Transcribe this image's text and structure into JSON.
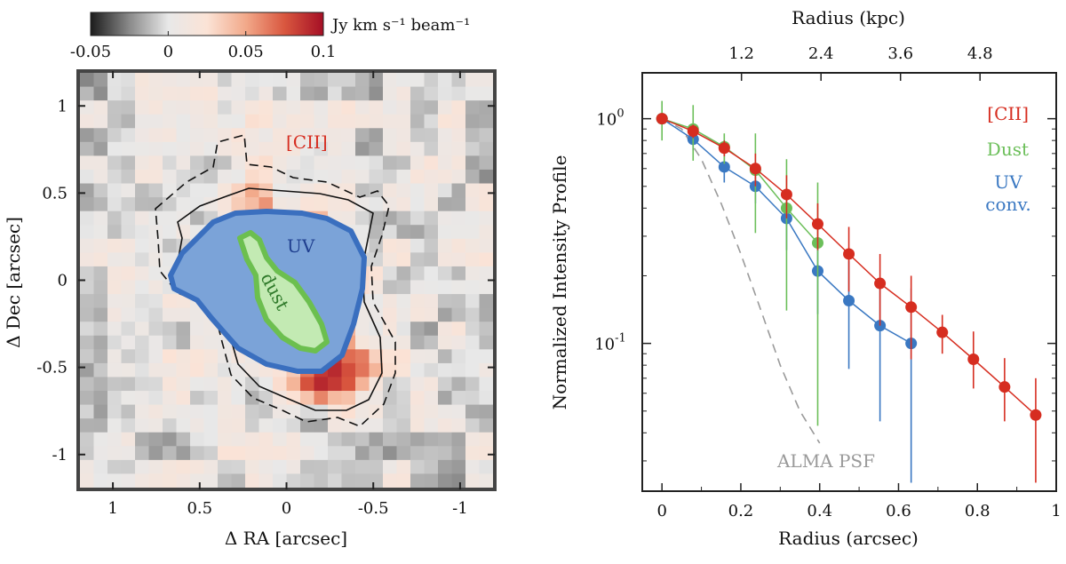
{
  "chart_data": [
    {
      "type": "heatmap",
      "panel": "left",
      "xlabel": "Δ RA [arcsec]",
      "ylabel": "Δ Dec [arcsec]",
      "xlim": [
        1.2,
        -1.2
      ],
      "ylim": [
        -1.2,
        1.2
      ],
      "x_ticks": [
        1,
        0.5,
        0,
        -0.5,
        -1
      ],
      "x_tick_labels": [
        "1",
        "0.5",
        "0",
        "-0.5",
        "-1"
      ],
      "y_ticks": [
        1,
        0.5,
        0,
        -0.5,
        -1
      ],
      "y_tick_labels": [
        "1",
        "0.5",
        "0",
        "-0.5",
        "-1"
      ],
      "colorbar": {
        "label": "Jy km s⁻¹ beam⁻¹",
        "range": [
          -0.05,
          0.1
        ],
        "ticks": [
          -0.05,
          0,
          0.05,
          0.1
        ],
        "tick_labels": [
          "-0.05",
          "0",
          "0.05",
          "0.1"
        ],
        "colormap": [
          "#1c1c1c",
          "#8a8a8a",
          "#e8e8e8",
          "#fbe3d6",
          "#f2a98a",
          "#d9573f",
          "#a50f25"
        ]
      },
      "labels": {
        "cii": "[CII]",
        "uv": "UV",
        "dust": "dust"
      },
      "colors": {
        "cii_label": "#d62d20",
        "uv_fill": "#7ba3d8",
        "uv_edge": "#3a6fbf",
        "uv_label": "#1f3f8f",
        "dust_fill": "#c3eab3",
        "dust_edge": "#6cbf4f",
        "dust_label": "#2f7a2a"
      }
    },
    {
      "type": "line",
      "panel": "right",
      "xlabel": "Radius (arcsec)",
      "ylabel": "Normalized Intensity Profile",
      "top_xlabel": "Radius (kpc)",
      "xlim": [
        -0.05,
        1.0
      ],
      "ylim": [
        0.022,
        1.6
      ],
      "yscale": "log",
      "x_ticks": [
        0,
        0.2,
        0.4,
        0.6,
        0.8,
        1
      ],
      "x_tick_labels": [
        "0",
        "0.2",
        "0.4",
        "0.6",
        "0.8",
        "1"
      ],
      "y_ticks": [
        1,
        0.1
      ],
      "y_tick_labels": [
        "10^0",
        "10^-1"
      ],
      "top_ticks": [
        1.2,
        2.4,
        3.6,
        4.8
      ],
      "top_tick_labels": [
        "1.2",
        "2.4",
        "3.6",
        "4.8"
      ],
      "kpc_per_arcsec": 5.95,
      "series": [
        {
          "name": "[CII]",
          "color": "#d62d20",
          "x": [
            0,
            0.079,
            0.158,
            0.237,
            0.316,
            0.395,
            0.474,
            0.553,
            0.632,
            0.711,
            0.79,
            0.869,
            0.948
          ],
          "y": [
            1.0,
            0.88,
            0.74,
            0.6,
            0.46,
            0.34,
            0.25,
            0.185,
            0.145,
            0.112,
            0.085,
            0.064,
            0.048
          ],
          "yerr_low": [
            1.0,
            0.82,
            0.68,
            0.5,
            0.36,
            0.26,
            0.17,
            0.12,
            0.085,
            0.09,
            0.063,
            0.045,
            0.024
          ],
          "yerr_high": [
            1.0,
            0.94,
            0.8,
            0.7,
            0.56,
            0.42,
            0.33,
            0.25,
            0.2,
            0.134,
            0.113,
            0.086,
            0.07
          ]
        },
        {
          "name": "Dust",
          "color": "#6cbf5a",
          "x": [
            0,
            0.079,
            0.158,
            0.237,
            0.316,
            0.395
          ],
          "y": [
            1.0,
            0.9,
            0.75,
            0.59,
            0.4,
            0.28
          ],
          "yerr_low": [
            0.8,
            0.65,
            0.63,
            0.31,
            0.14,
            0.043
          ],
          "yerr_high": [
            1.2,
            1.15,
            0.86,
            0.86,
            0.66,
            0.52
          ]
        },
        {
          "name": "UV conv.",
          "color": "#3a78c2",
          "x": [
            0,
            0.079,
            0.158,
            0.237,
            0.316,
            0.395,
            0.474,
            0.553,
            0.632
          ],
          "y": [
            1.0,
            0.81,
            0.61,
            0.5,
            0.36,
            0.21,
            0.155,
            0.12,
            0.1
          ],
          "yerr_low": [
            1.0,
            0.72,
            0.52,
            0.42,
            0.26,
            0.135,
            0.077,
            0.045,
            0.024
          ],
          "yerr_high": [
            1.0,
            0.9,
            0.7,
            0.58,
            0.46,
            0.285,
            0.233,
            0.195,
            0.176
          ]
        },
        {
          "name": "ALMA PSF",
          "color": "#9a9a9a",
          "style": "dashed",
          "x": [
            0,
            0.05,
            0.1,
            0.15,
            0.2,
            0.25,
            0.3,
            0.35,
            0.4
          ],
          "y": [
            1.0,
            0.9,
            0.66,
            0.42,
            0.25,
            0.142,
            0.08,
            0.05,
            0.036
          ]
        }
      ],
      "legend_labels": {
        "cii": "[CII]",
        "dust": "Dust",
        "uv_1": "UV",
        "uv_2": "conv.",
        "psf": "ALMA PSF"
      }
    }
  ]
}
